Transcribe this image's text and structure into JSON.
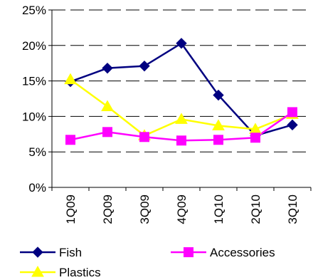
{
  "chart_data": {
    "type": "line",
    "categories": [
      "1Q09",
      "2Q09",
      "3Q09",
      "4Q09",
      "1Q10",
      "2Q10",
      "3Q10"
    ],
    "ylim": [
      0,
      25
    ],
    "yticks": [
      0,
      5,
      10,
      15,
      20,
      25
    ],
    "ytick_labels": [
      "0%",
      "5%",
      "10%",
      "15%",
      "20%",
      "25%"
    ],
    "grid": "dashed horizontal",
    "legend_position": "bottom",
    "series": [
      {
        "name": "Fish",
        "color": "#000080",
        "marker": "diamond",
        "values": [
          14.9,
          16.8,
          17.1,
          20.3,
          13.0,
          7.3,
          8.8
        ]
      },
      {
        "name": "Plastics",
        "color": "#ffff00",
        "marker": "triangle",
        "values": [
          15.2,
          11.4,
          7.3,
          9.6,
          8.7,
          8.2,
          10.3
        ]
      },
      {
        "name": "Accessories",
        "color": "#ff00ff",
        "marker": "square",
        "values": [
          6.7,
          7.8,
          7.1,
          6.6,
          6.7,
          7.0,
          10.6
        ]
      }
    ]
  }
}
